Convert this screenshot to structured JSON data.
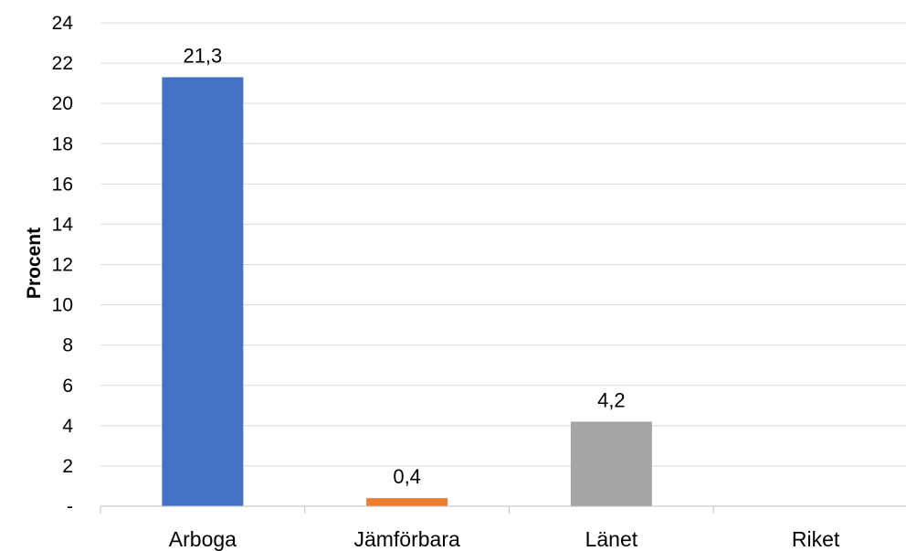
{
  "chart_data": {
    "type": "bar",
    "categories": [
      "Arboga",
      "Jämförbara",
      "Länet",
      "Riket"
    ],
    "values": [
      21.3,
      0.4,
      4.2,
      0
    ],
    "data_labels": [
      "21,3",
      "0,4",
      "4,2",
      ""
    ],
    "colors": [
      "#4472C4",
      "#ED7D31",
      "#A5A5A5",
      "#FFC000"
    ],
    "title": "",
    "xlabel": "",
    "ylabel": "Procent",
    "ylim": [
      0,
      24
    ],
    "yticks": [
      0,
      2,
      4,
      6,
      8,
      10,
      12,
      14,
      16,
      18,
      20,
      22,
      24
    ],
    "ytick_labels": [
      "-",
      "2",
      "4",
      "6",
      "8",
      "10",
      "12",
      "14",
      "16",
      "18",
      "20",
      "22",
      "24"
    ],
    "grid": true,
    "gridline_color": "#D9D9D9",
    "axis_color": "#BFBFBF"
  }
}
